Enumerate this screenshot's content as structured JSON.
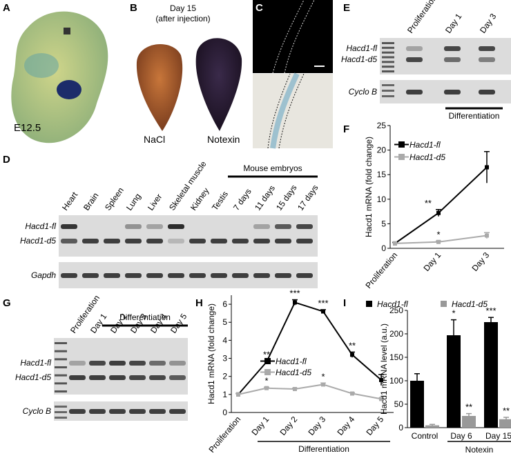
{
  "panels": {
    "A": {
      "label": "A",
      "caption": "E12.5"
    },
    "B": {
      "label": "B",
      "title": "Day 15",
      "subtitle": "(after injection)",
      "samples": [
        "NaCl",
        "Notexin"
      ]
    },
    "C": {
      "label": "C"
    },
    "D": {
      "label": "D",
      "lanes": [
        "Heart",
        "Brain",
        "Spleen",
        "Lung",
        "Liver",
        "Skeletal muscle",
        "Kidney",
        "Testis",
        "7 days",
        "11 days",
        "15 days",
        "17 days"
      ],
      "group": "Mouse embryos",
      "bands": [
        "Hacd1-fl",
        "Hacd1-d5"
      ],
      "control": "Gapdh"
    },
    "E": {
      "label": "E",
      "lanes": [
        "Proliferation",
        "Day 1",
        "Day 3"
      ],
      "group": "Differentiation",
      "bands": [
        "Hacd1-fl",
        "Hacd1-d5"
      ],
      "control": "Cyclo B"
    },
    "G": {
      "label": "G",
      "lanes": [
        "Proliferation",
        "Day 1",
        "Day 2",
        "Day 3",
        "Day 4",
        "Day 5"
      ],
      "group": "Differentiation",
      "bands": [
        "Hacd1-fl",
        "Hacd1-d5"
      ],
      "control": "Cyclo B"
    }
  },
  "chart_data": [
    {
      "type": "line",
      "panel": "F",
      "ylabel": "Hacd1 mRNA (fold change)",
      "categories": [
        "Proliferation",
        "Day 1",
        "Day 3"
      ],
      "ylim": [
        0,
        25
      ],
      "yticks": [
        0,
        5,
        10,
        15,
        20,
        25
      ],
      "series": [
        {
          "name": "Hacd1-fl",
          "color": "#000000",
          "values": [
            1,
            7.2,
            16.5
          ],
          "errors": [
            0.2,
            0.7,
            3.2
          ],
          "annotations": [
            null,
            "**",
            null
          ]
        },
        {
          "name": "Hacd1-d5",
          "color": "#aaaaaa",
          "values": [
            1,
            1.3,
            2.6
          ],
          "errors": [
            0.1,
            0.2,
            0.6
          ],
          "annotations": [
            null,
            "*",
            null
          ]
        }
      ]
    },
    {
      "type": "line",
      "panel": "H",
      "ylabel": "Hacd1 mRNA (fold change)",
      "group": "Differentiation",
      "categories": [
        "Proliferation",
        "Day 1",
        "Day 2",
        "Day 3",
        "Day 4",
        "Day 5"
      ],
      "ylim": [
        0,
        6.5
      ],
      "yticks": [
        0,
        1,
        2,
        3,
        4,
        5,
        6
      ],
      "series": [
        {
          "name": "Hacd1-fl",
          "color": "#000000",
          "values": [
            1,
            2.8,
            6.1,
            5.6,
            3.2,
            1.8
          ],
          "errors": [
            0.05,
            0.05,
            0.15,
            0.1,
            0.15,
            0.3
          ],
          "annotations": [
            null,
            "**",
            "***",
            "***",
            "**",
            null
          ]
        },
        {
          "name": "Hacd1-d5",
          "color": "#aaaaaa",
          "values": [
            1,
            1.35,
            1.3,
            1.55,
            1.05,
            0.75
          ],
          "errors": [
            0.05,
            0.05,
            0.05,
            0.08,
            0.05,
            0.05
          ],
          "annotations": [
            null,
            "*",
            null,
            "*",
            null,
            null
          ]
        }
      ]
    },
    {
      "type": "bar",
      "panel": "I",
      "ylabel": "Hacd1 mRNA level (a.u.)",
      "group": "Notexin",
      "categories": [
        "Control",
        "Day 6",
        "Day 15"
      ],
      "ylim": [
        0,
        250
      ],
      "yticks": [
        0,
        50,
        100,
        150,
        200,
        250
      ],
      "series": [
        {
          "name": "Hacd1-fl",
          "color": "#000000",
          "values": [
            100,
            197,
            225
          ],
          "errors": [
            15,
            33,
            10
          ],
          "annotations": [
            null,
            "*",
            "***"
          ]
        },
        {
          "name": "Hacd1-d5",
          "color": "#999999",
          "values": [
            5,
            25,
            18
          ],
          "errors": [
            2,
            5,
            4
          ],
          "annotations": [
            null,
            "**",
            "**"
          ]
        }
      ]
    }
  ]
}
